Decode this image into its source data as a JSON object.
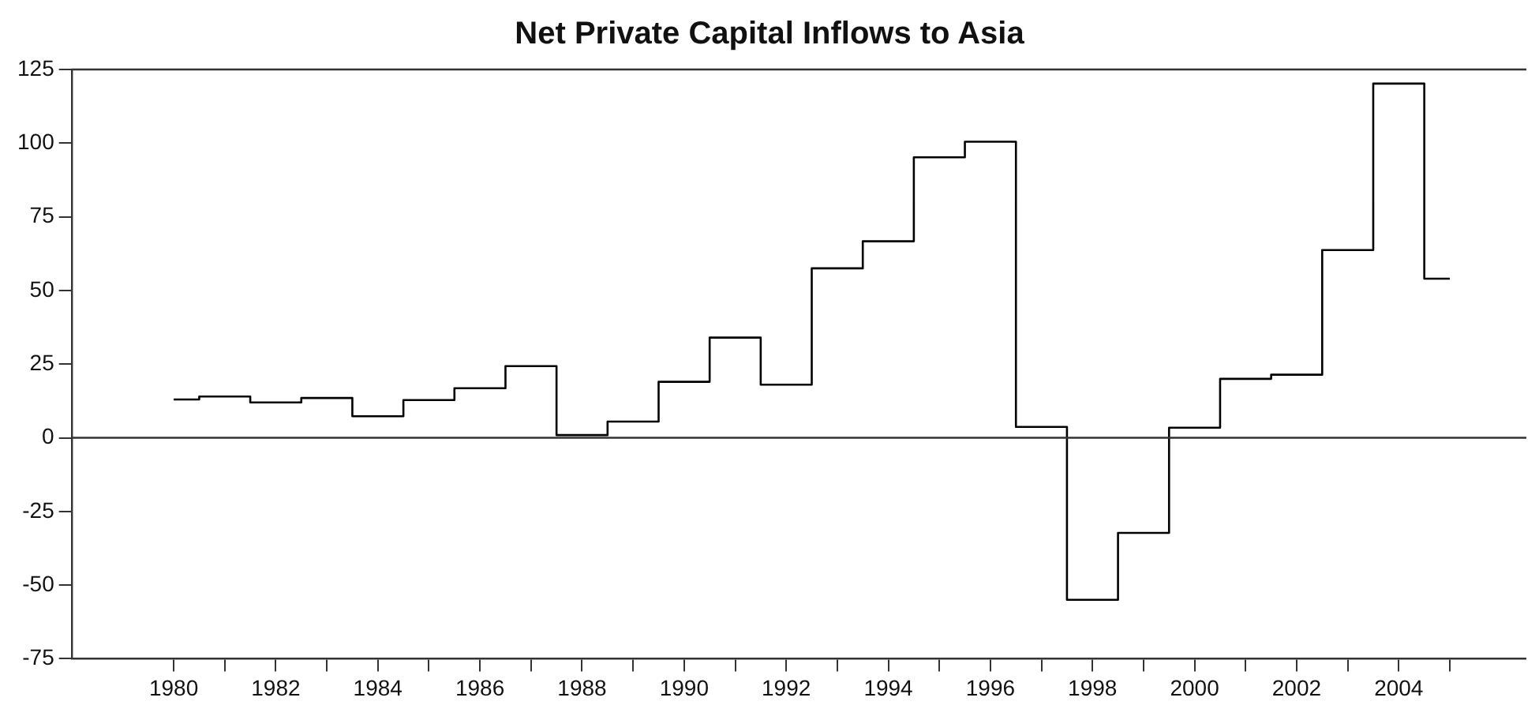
{
  "chart_data": {
    "type": "step",
    "title": "Net Private Capital Inflows to Asia",
    "x": [
      1980,
      1981,
      1982,
      1983,
      1984,
      1985,
      1986,
      1987,
      1988,
      1989,
      1990,
      1991,
      1992,
      1993,
      1994,
      1995,
      1996,
      1997,
      1998,
      1999,
      2000,
      2001,
      2002,
      2003,
      2004,
      2005
    ],
    "series": [
      {
        "color": "#000000",
        "values": [
          13,
          14,
          12,
          13.5,
          7.3,
          12.8,
          16.8,
          24.3,
          0.9,
          5.5,
          19,
          34,
          18,
          57.5,
          66.7,
          95.2,
          100.5,
          3.7,
          -55,
          -32.3,
          3.4,
          20,
          21.4,
          63.7,
          120.2,
          54
        ]
      }
    ],
    "xlim": [
      1978,
      2006.5
    ],
    "xticks": [
      1980,
      {
        "value": 1981,
        "label": null
      },
      1982,
      {
        "value": 1983,
        "label": null
      },
      1984,
      {
        "value": 1985,
        "label": null
      },
      1986,
      {
        "value": 1987,
        "label": null
      },
      1988,
      {
        "value": 1989,
        "label": null
      },
      1990,
      {
        "value": 1991,
        "label": null
      },
      1992,
      {
        "value": 1993,
        "label": null
      },
      1994,
      {
        "value": 1995,
        "label": null
      },
      1996,
      {
        "value": 1997,
        "label": null
      },
      1998,
      {
        "value": 1999,
        "label": null
      },
      2000,
      {
        "value": 2001,
        "label": null
      },
      2002,
      {
        "value": 2003,
        "label": null
      },
      2004,
      {
        "value": 2005,
        "label": null
      }
    ],
    "ylim": [
      -75,
      125
    ],
    "yticks": [
      -75,
      -50,
      -25,
      0,
      25,
      50,
      75,
      100,
      125
    ],
    "ref_lines": [
      {
        "axis": "y",
        "value": 0,
        "color": "#333333"
      }
    ],
    "grid": false,
    "legend": false
  }
}
